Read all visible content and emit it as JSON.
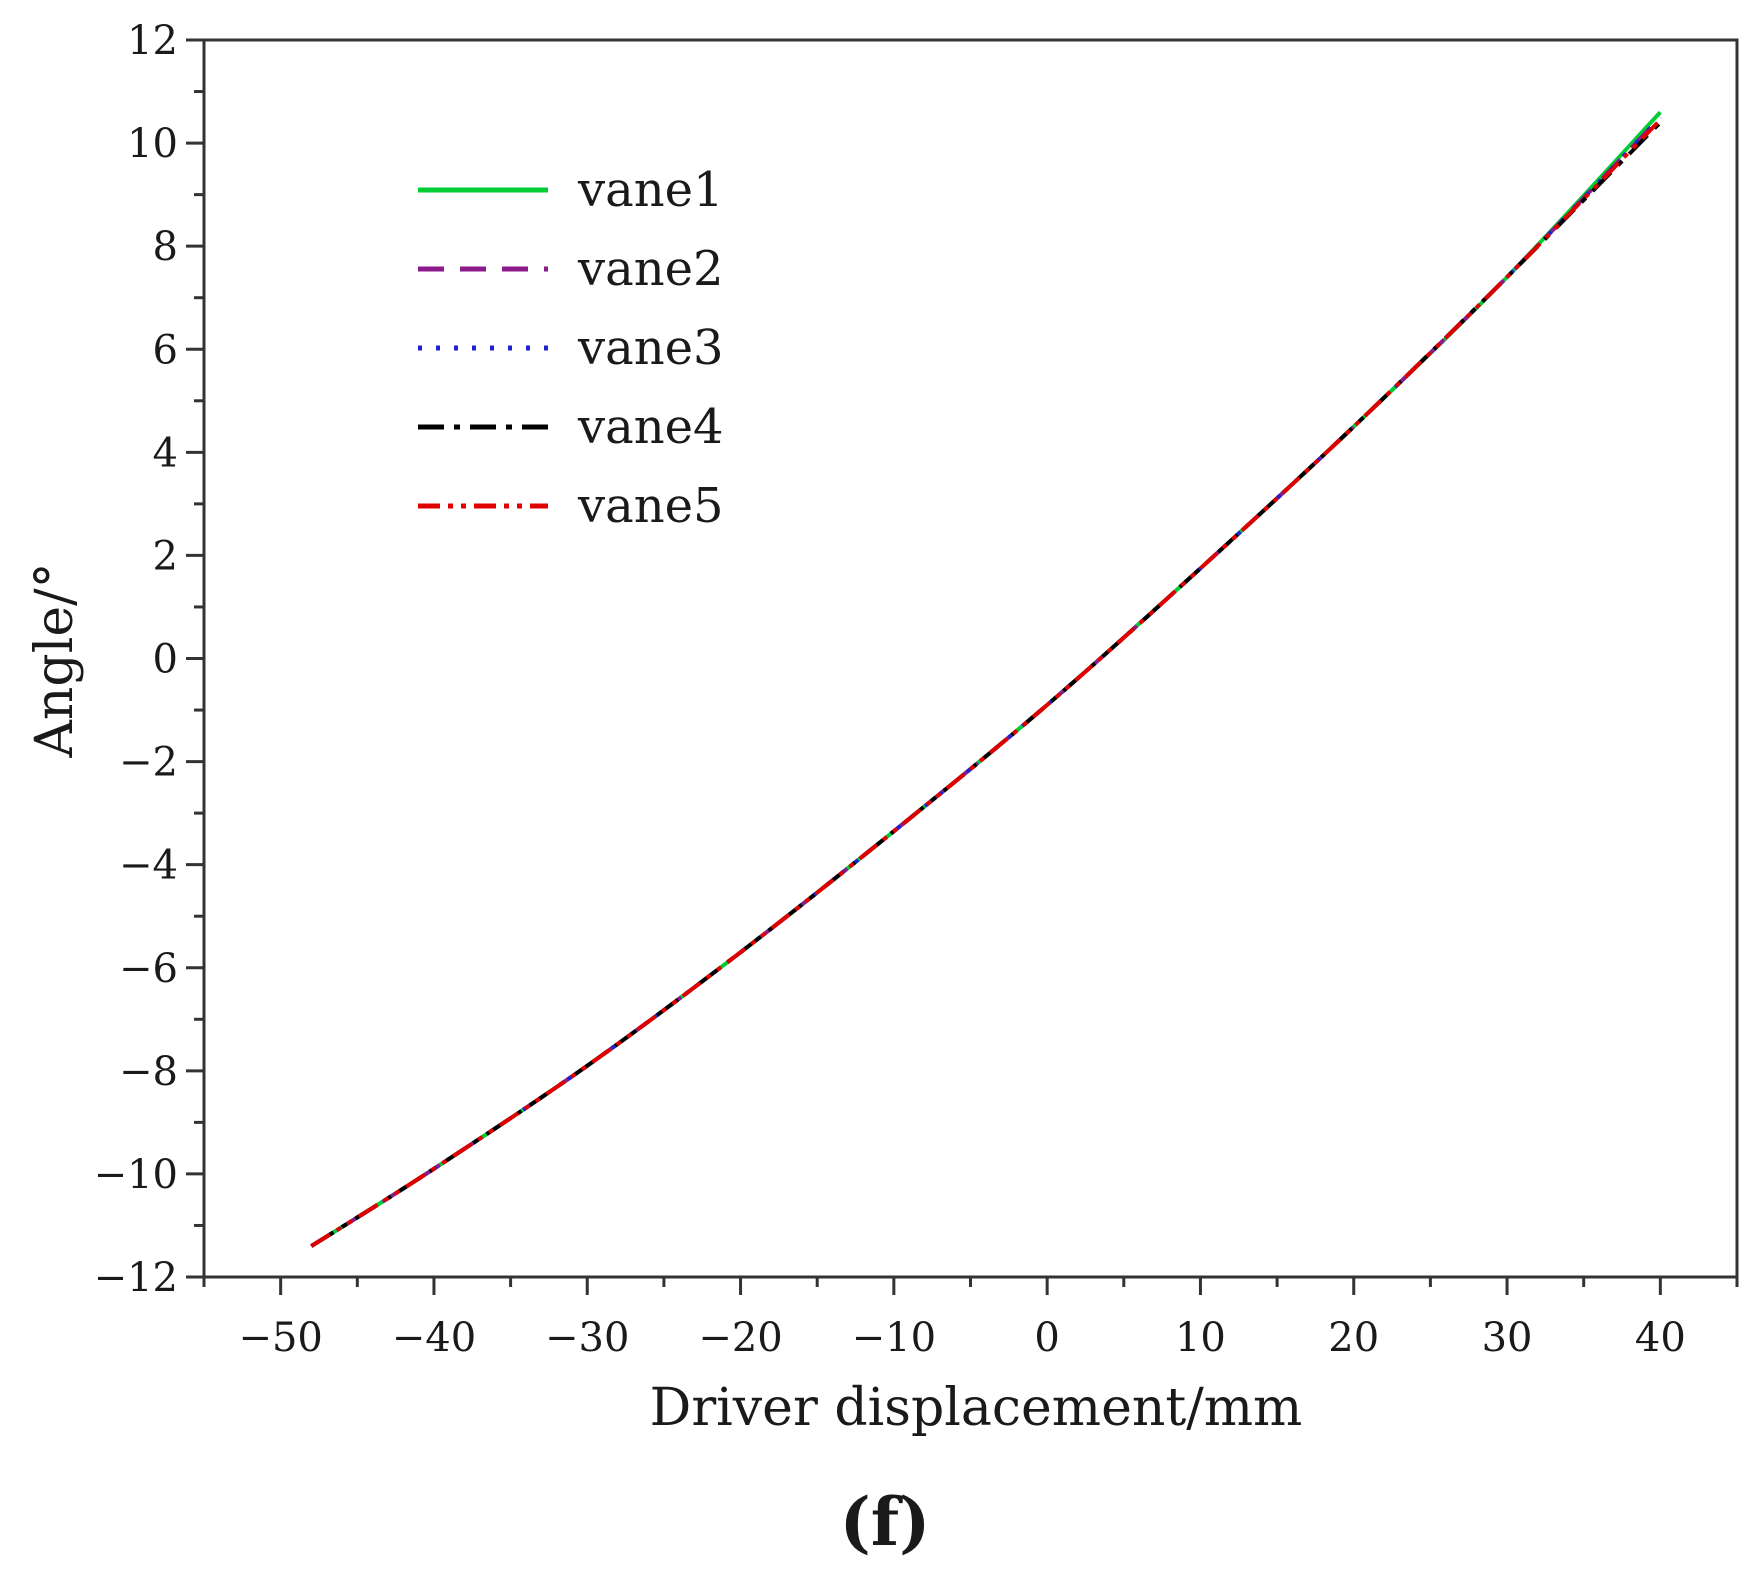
{
  "panel_label": "(f)",
  "chart_data": {
    "type": "line",
    "title": "",
    "xlabel": "Driver displacement/mm",
    "ylabel": "Angle/°",
    "xlim": [
      -55,
      45
    ],
    "ylim": [
      -12,
      12
    ],
    "xticks": [
      -50,
      -40,
      -30,
      -20,
      -10,
      0,
      10,
      20,
      30,
      40
    ],
    "yticks": [
      -12,
      -10,
      -8,
      -6,
      -4,
      -2,
      0,
      2,
      4,
      6,
      8,
      10,
      12
    ],
    "xtick_labels": [
      "−50",
      "−40",
      "−30",
      "−20",
      "−10",
      "0",
      "10",
      "20",
      "30",
      "40"
    ],
    "ytick_labels": [
      "−12",
      "−10",
      "−8",
      "−6",
      "−4",
      "−2",
      "0",
      "2",
      "4",
      "6",
      "8",
      "10",
      "12"
    ],
    "grid": false,
    "legend_position": "top-left",
    "x": [
      -48,
      -40,
      -30,
      -20,
      -10,
      0,
      10,
      20,
      30,
      40
    ],
    "series": [
      {
        "name": "vane1",
        "color": "#00cc33",
        "style": "solid",
        "values": [
          -11.4,
          -9.9,
          -7.9,
          -5.7,
          -3.35,
          -0.9,
          1.75,
          4.5,
          7.4,
          10.6
        ]
      },
      {
        "name": "vane2",
        "color": "#8b1a8b",
        "style": "dashed",
        "values": [
          -11.4,
          -9.9,
          -7.9,
          -5.7,
          -3.35,
          -0.9,
          1.75,
          4.5,
          7.4,
          10.5
        ]
      },
      {
        "name": "vane3",
        "color": "#1f1fd6",
        "style": "dotted",
        "values": [
          -11.4,
          -9.9,
          -7.9,
          -5.7,
          -3.35,
          -0.9,
          1.75,
          4.5,
          7.4,
          10.5
        ]
      },
      {
        "name": "vane4",
        "color": "#000000",
        "style": "dashdot",
        "values": [
          -11.4,
          -9.9,
          -7.9,
          -5.7,
          -3.35,
          -0.9,
          1.75,
          4.5,
          7.4,
          10.4
        ]
      },
      {
        "name": "vane5",
        "color": "#e00000",
        "style": "dashdotdot",
        "values": [
          -11.4,
          -9.9,
          -7.9,
          -5.7,
          -3.35,
          -0.9,
          1.75,
          4.5,
          7.4,
          10.45
        ]
      }
    ]
  }
}
